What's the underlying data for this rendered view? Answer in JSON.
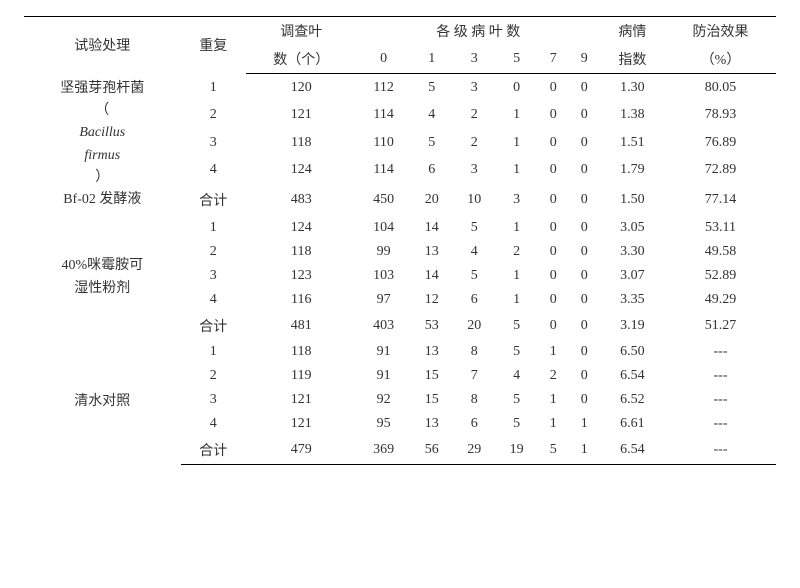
{
  "headers": {
    "treatment": "试验处理",
    "repeat": "重复",
    "leaf_count_l1": "调查叶",
    "leaf_count_l2": "数（个）",
    "grades_title": "各 级 病 叶 数",
    "g0": "0",
    "g1": "1",
    "g3": "3",
    "g5": "5",
    "g7": "7",
    "g9": "9",
    "index_l1": "病情",
    "index_l2": "指数",
    "effect_l1": "防治效果",
    "effect_l2": "（%）"
  },
  "treatments": [
    {
      "lines": [
        "坚强芽孢杆菌",
        "（",
        " Bacillus",
        "firmus",
        "）",
        "Bf-02 发酵液"
      ],
      "italic_lines": [
        2,
        3
      ]
    },
    {
      "lines": [
        "40%咪霉胺可",
        "湿性粉剂"
      ],
      "italic_lines": []
    },
    {
      "lines": [
        "清水对照"
      ],
      "italic_lines": []
    }
  ],
  "rows": [
    {
      "t": 0,
      "rep": "1",
      "leaf": "120",
      "g": [
        "112",
        "5",
        "3",
        "0",
        "0",
        "0"
      ],
      "idx": "1.30",
      "eff": "80.05"
    },
    {
      "t": 0,
      "rep": "2",
      "leaf": "121",
      "g": [
        "114",
        "4",
        "2",
        "1",
        "0",
        "0"
      ],
      "idx": "1.38",
      "eff": "78.93"
    },
    {
      "t": 0,
      "rep": "3",
      "leaf": "118",
      "g": [
        "110",
        "5",
        "2",
        "1",
        "0",
        "0"
      ],
      "idx": "1.51",
      "eff": "76.89"
    },
    {
      "t": 0,
      "rep": "4",
      "leaf": "124",
      "g": [
        "114",
        "6",
        "3",
        "1",
        "0",
        "0"
      ],
      "idx": "1.79",
      "eff": "72.89"
    },
    {
      "t": 0,
      "rep": "合计",
      "leaf": "483",
      "g": [
        "450",
        "20",
        "10",
        "3",
        "0",
        "0"
      ],
      "idx": "1.50",
      "eff": "77.14"
    },
    {
      "t": 1,
      "rep": "1",
      "leaf": "124",
      "g": [
        "104",
        "14",
        "5",
        "1",
        "0",
        "0"
      ],
      "idx": "3.05",
      "eff": "53.11"
    },
    {
      "t": 1,
      "rep": "2",
      "leaf": "118",
      "g": [
        "99",
        "13",
        "4",
        "2",
        "0",
        "0"
      ],
      "idx": "3.30",
      "eff": "49.58"
    },
    {
      "t": 1,
      "rep": "3",
      "leaf": "123",
      "g": [
        "103",
        "14",
        "5",
        "1",
        "0",
        "0"
      ],
      "idx": "3.07",
      "eff": "52.89"
    },
    {
      "t": 1,
      "rep": "4",
      "leaf": "116",
      "g": [
        "97",
        "12",
        "6",
        "1",
        "0",
        "0"
      ],
      "idx": "3.35",
      "eff": "49.29"
    },
    {
      "t": 1,
      "rep": "合计",
      "leaf": "481",
      "g": [
        "403",
        "53",
        "20",
        "5",
        "0",
        "0"
      ],
      "idx": "3.19",
      "eff": "51.27"
    },
    {
      "t": 2,
      "rep": "1",
      "leaf": "118",
      "g": [
        "91",
        "13",
        "8",
        "5",
        "1",
        "0"
      ],
      "idx": "6.50",
      "eff": "---"
    },
    {
      "t": 2,
      "rep": "2",
      "leaf": "119",
      "g": [
        "91",
        "15",
        "7",
        "4",
        "2",
        "0"
      ],
      "idx": "6.54",
      "eff": "---"
    },
    {
      "t": 2,
      "rep": "3",
      "leaf": "121",
      "g": [
        "92",
        "15",
        "8",
        "5",
        "1",
        "0"
      ],
      "idx": "6.52",
      "eff": "---"
    },
    {
      "t": 2,
      "rep": "4",
      "leaf": "121",
      "g": [
        "95",
        "13",
        "6",
        "5",
        "1",
        "1"
      ],
      "idx": "6.61",
      "eff": "---"
    },
    {
      "t": 2,
      "rep": "合计",
      "leaf": "479",
      "g": [
        "369",
        "56",
        "29",
        "19",
        "5",
        "1"
      ],
      "idx": "6.54",
      "eff": "---"
    }
  ]
}
